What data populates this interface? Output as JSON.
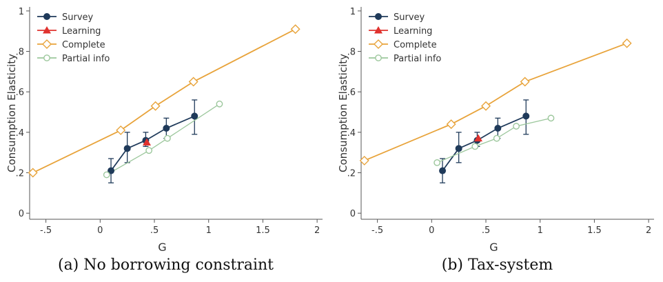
{
  "chart_data": [
    {
      "type": "line",
      "caption": "(a) No borrowing constraint",
      "xlabel": "G",
      "ylabel": "Consumption Elasticity",
      "xlim": [
        -0.65,
        2.05
      ],
      "ylim": [
        -0.03,
        1.02
      ],
      "x_ticks": [
        -0.5,
        0,
        0.5,
        1,
        1.5,
        2
      ],
      "x_tick_labels": [
        "-.5",
        "0",
        ".5",
        "1",
        "1.5",
        "2"
      ],
      "y_ticks": [
        0,
        0.2,
        0.4,
        0.6,
        0.8,
        1
      ],
      "y_tick_labels": [
        "0",
        ".2",
        ".4",
        ".6",
        ".8",
        "1"
      ],
      "legend_position": "top-left",
      "series": [
        {
          "name": "Survey",
          "color": "#1f3a5a",
          "marker": "circle",
          "x": [
            0.1,
            0.25,
            0.42,
            0.61,
            0.87
          ],
          "y": [
            0.21,
            0.32,
            0.36,
            0.42,
            0.48
          ],
          "err_low": [
            0.15,
            0.25,
            0.33,
            0.37,
            0.39
          ],
          "err_high": [
            0.27,
            0.4,
            0.4,
            0.47,
            0.56
          ]
        },
        {
          "name": "Learning",
          "color": "#e0322e",
          "marker": "triangle",
          "x": [
            0.43
          ],
          "y": [
            0.35
          ]
        },
        {
          "name": "Complete",
          "color": "#e8a33a",
          "marker": "diamond",
          "x": [
            -0.62,
            0.19,
            0.51,
            0.86,
            1.8
          ],
          "y": [
            0.2,
            0.41,
            0.53,
            0.65,
            0.91
          ]
        },
        {
          "name": "Partial info",
          "color": "#9cc79c",
          "marker": "ring",
          "x": [
            0.06,
            0.45,
            0.62,
            1.1
          ],
          "y": [
            0.19,
            0.31,
            0.37,
            0.54
          ]
        }
      ]
    },
    {
      "type": "line",
      "caption": "(b) Tax-system",
      "xlabel": "G",
      "ylabel": "Consumption Elasticity",
      "xlim": [
        -0.65,
        2.05
      ],
      "ylim": [
        -0.03,
        1.02
      ],
      "x_ticks": [
        -0.5,
        0,
        0.5,
        1,
        1.5,
        2
      ],
      "x_tick_labels": [
        "-.5",
        "0",
        ".5",
        "1",
        "1.5",
        "2"
      ],
      "y_ticks": [
        0,
        0.2,
        0.4,
        0.6,
        0.8,
        1
      ],
      "y_tick_labels": [
        "0",
        ".2",
        ".4",
        ".6",
        ".8",
        "1"
      ],
      "legend_position": "top-left",
      "series": [
        {
          "name": "Survey",
          "color": "#1f3a5a",
          "marker": "circle",
          "x": [
            0.1,
            0.25,
            0.42,
            0.61,
            0.87
          ],
          "y": [
            0.21,
            0.32,
            0.36,
            0.42,
            0.48
          ],
          "err_low": [
            0.15,
            0.25,
            0.33,
            0.37,
            0.39
          ],
          "err_high": [
            0.27,
            0.4,
            0.4,
            0.47,
            0.56
          ]
        },
        {
          "name": "Learning",
          "color": "#e0322e",
          "marker": "triangle",
          "x": [
            0.43
          ],
          "y": [
            0.37
          ]
        },
        {
          "name": "Complete",
          "color": "#e8a33a",
          "marker": "diamond",
          "x": [
            -0.62,
            0.18,
            0.5,
            0.86,
            1.8
          ],
          "y": [
            0.26,
            0.44,
            0.53,
            0.65,
            0.84
          ]
        },
        {
          "name": "Partial info",
          "color": "#9cc79c",
          "marker": "ring",
          "x": [
            0.05,
            0.4,
            0.6,
            0.78,
            1.1
          ],
          "y": [
            0.25,
            0.33,
            0.37,
            0.43,
            0.47
          ]
        }
      ]
    }
  ]
}
